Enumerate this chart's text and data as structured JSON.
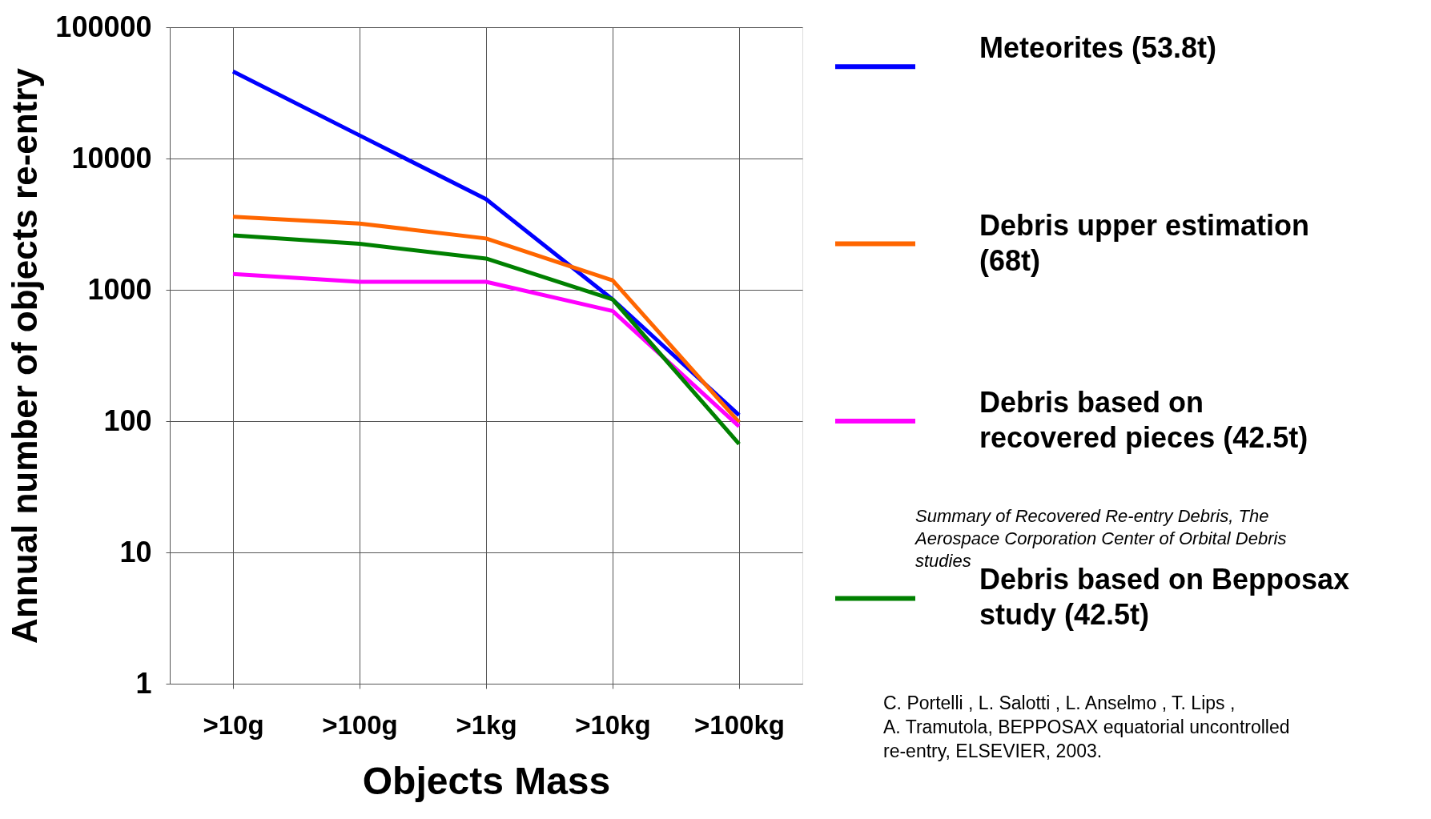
{
  "chart_data": {
    "type": "line",
    "xlabel": "Objects Mass",
    "ylabel": "Annual number of objects re-entry",
    "categories": [
      ">10g",
      ">100g",
      ">1kg",
      ">10kg",
      ">100kg"
    ],
    "series": [
      {
        "name": "Meteorites (53.8t)",
        "color": "#0000ff",
        "values": [
          46000,
          15000,
          4900,
          845,
          111
        ]
      },
      {
        "name": "Debris upper estimation (68t)",
        "color": "#ff6600",
        "values": [
          3600,
          3200,
          2460,
          1180,
          98
        ]
      },
      {
        "name": "Debris based on recovered pieces (42.5t)",
        "color": "#ff00ff",
        "values": [
          1320,
          1150,
          1150,
          690,
          91
        ]
      },
      {
        "name": "Debris based on Bepposax study (42.5t)",
        "color": "#008000",
        "values": [
          2600,
          2240,
          1730,
          845,
          67
        ]
      }
    ],
    "log": "y",
    "ylim": [
      1,
      100000
    ],
    "yticks": [
      1,
      10,
      100,
      1000,
      10000,
      100000
    ],
    "grid": true,
    "legend": "right",
    "marker": "none",
    "line_style": "solid",
    "annotations": [
      "Summary of Recovered Re-entry Debris, The Aerospace Corporation Center of Orbital Debris studies",
      "C. Portelli , L. Salotti , L. Anselmo , T. Lips , A. Tramutola, BEPPOSAX equatorial uncontrolled re-entry, ELSEVIER, 2003."
    ]
  }
}
